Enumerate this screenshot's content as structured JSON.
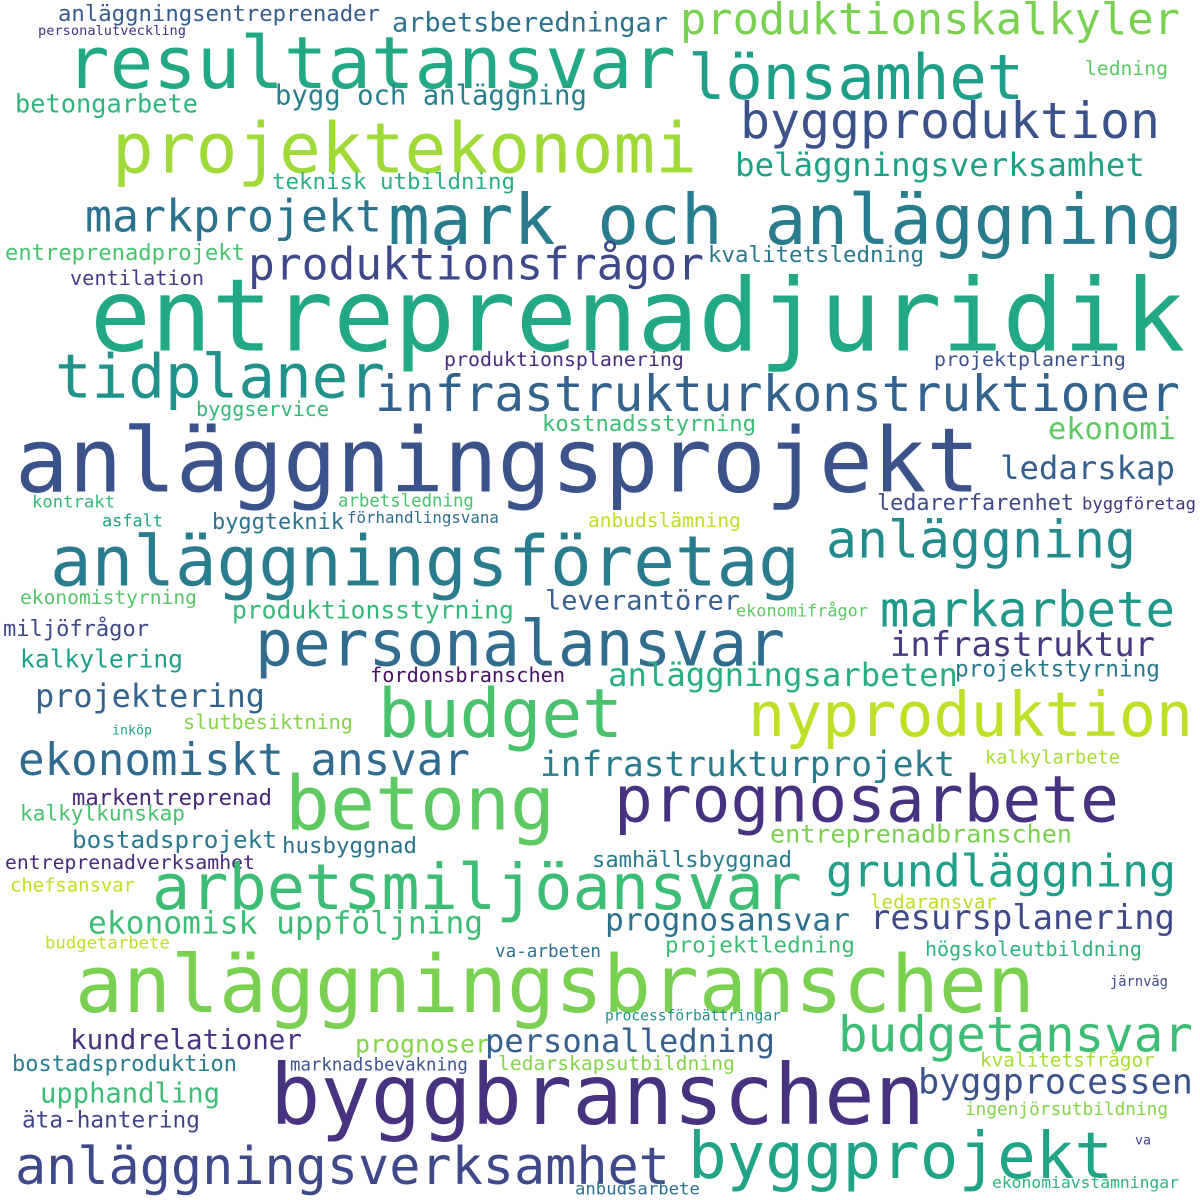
{
  "words": [
    {
      "text": "anläggningsentreprenader",
      "color": "#365c8d"
    },
    {
      "text": "personalutveckling",
      "color": "#46327e"
    },
    {
      "text": "arbetsberedningar",
      "color": "#2c728e"
    },
    {
      "text": "produktionskalkyler",
      "color": "#7ad151"
    },
    {
      "text": "resultatansvar",
      "color": "#22a884"
    },
    {
      "text": "lönsamhet",
      "color": "#1f9e89"
    },
    {
      "text": "ledning",
      "color": "#5ec962"
    },
    {
      "text": "betongarbete",
      "color": "#2fb47c"
    },
    {
      "text": "bygg och anläggning",
      "color": "#277f8e"
    },
    {
      "text": "byggproduktion",
      "color": "#3b528b"
    },
    {
      "text": "projektekonomi",
      "color": "#a0da39"
    },
    {
      "text": "beläggningsverksamhet",
      "color": "#1fa187"
    },
    {
      "text": "teknisk utbildning",
      "color": "#2ab07f"
    },
    {
      "text": "markprojekt",
      "color": "#2c728e"
    },
    {
      "text": "mark och anläggning",
      "color": "#287c8e"
    },
    {
      "text": "entreprenadprojekt",
      "color": "#4ac16d"
    },
    {
      "text": "produktionsfrågor",
      "color": "#3e4989"
    },
    {
      "text": "kvalitetsledning",
      "color": "#2a788e"
    },
    {
      "text": "ventilation",
      "color": "#433e85"
    },
    {
      "text": "entreprenadjuridik",
      "color": "#22a884"
    },
    {
      "text": "tidplaner",
      "color": "#21918c"
    },
    {
      "text": "produktionsplanering",
      "color": "#472d7b"
    },
    {
      "text": "projektplanering",
      "color": "#3b528b"
    },
    {
      "text": "infrastrukturkonstruktioner",
      "color": "#33638d"
    },
    {
      "text": "byggservice",
      "color": "#35b779"
    },
    {
      "text": "kostnadsstyrning",
      "color": "#3dbc74"
    },
    {
      "text": "ekonomi",
      "color": "#5ec962"
    },
    {
      "text": "anläggningsprojekt",
      "color": "#3b528b"
    },
    {
      "text": "ledarskap",
      "color": "#355f8d"
    },
    {
      "text": "kontrakt",
      "color": "#35b779"
    },
    {
      "text": "arbetsledning",
      "color": "#4ac16d"
    },
    {
      "text": "ledarerfarenhet",
      "color": "#3e4989"
    },
    {
      "text": "byggföretag",
      "color": "#46327e"
    },
    {
      "text": "asfalt",
      "color": "#20a386"
    },
    {
      "text": "byggteknik",
      "color": "#2c728e"
    },
    {
      "text": "förhandlingsvana",
      "color": "#2d708e"
    },
    {
      "text": "anbudslämning",
      "color": "#bddf26"
    },
    {
      "text": "anläggningsföretag",
      "color": "#287c8e"
    },
    {
      "text": "anläggning",
      "color": "#238a8d"
    },
    {
      "text": "ekonomistyrning",
      "color": "#54c568"
    },
    {
      "text": "leverantörer",
      "color": "#355f8d"
    },
    {
      "text": "ekonomifrågor",
      "color": "#5ec962"
    },
    {
      "text": "produktionsstyrning",
      "color": "#37b878"
    },
    {
      "text": "markarbete",
      "color": "#1f978b"
    },
    {
      "text": "miljöfrågor",
      "color": "#3e4989"
    },
    {
      "text": "personalansvar",
      "color": "#2f6c8e"
    },
    {
      "text": "infrastruktur",
      "color": "#443983"
    },
    {
      "text": "kalkylering",
      "color": "#1f9e89"
    },
    {
      "text": "fordonsbranschen",
      "color": "#471164"
    },
    {
      "text": "projektstyrning",
      "color": "#2a788e"
    },
    {
      "text": "anläggningsarbeten",
      "color": "#29af7f"
    },
    {
      "text": "projektering",
      "color": "#33638d"
    },
    {
      "text": "budget",
      "color": "#4ac16d"
    },
    {
      "text": "nyproduktion",
      "color": "#bddf26"
    },
    {
      "text": "inköp",
      "color": "#20a386"
    },
    {
      "text": "slutbesiktning",
      "color": "#84d44b"
    },
    {
      "text": "ekonomiskt ansvar",
      "color": "#306a8e"
    },
    {
      "text": "infrastrukturprojekt",
      "color": "#287c8e"
    },
    {
      "text": "kalkylarbete",
      "color": "#a8db34"
    },
    {
      "text": "betong",
      "color": "#5ec962"
    },
    {
      "text": "prognosarbete",
      "color": "#46327e"
    },
    {
      "text": "markentreprenad",
      "color": "#482878"
    },
    {
      "text": "kalkylkunskap",
      "color": "#4ac16d"
    },
    {
      "text": "bostadsprojekt",
      "color": "#2a788e"
    },
    {
      "text": "husbyggnad",
      "color": "#2c728e"
    },
    {
      "text": "entreprenadbranschen",
      "color": "#7ad151"
    },
    {
      "text": "samhällsbyggnad",
      "color": "#297b8e"
    },
    {
      "text": "entreprenadverksamhet",
      "color": "#472a7a"
    },
    {
      "text": "arbetsmiljöansvar",
      "color": "#3dbc74"
    },
    {
      "text": "grundläggning",
      "color": "#1f9e89"
    },
    {
      "text": "chefsansvar",
      "color": "#c2df23"
    },
    {
      "text": "ledaransvar",
      "color": "#bddf26"
    },
    {
      "text": "ekonomisk uppföljning",
      "color": "#3dbc74"
    },
    {
      "text": "prognosansvar",
      "color": "#2d708e"
    },
    {
      "text": "resursplanering",
      "color": "#3e4989"
    },
    {
      "text": "budgetarbete",
      "color": "#c2df23"
    },
    {
      "text": "va-arbeten",
      "color": "#2c728e"
    },
    {
      "text": "projektledning",
      "color": "#3dbc74"
    },
    {
      "text": "högskoleutbildning",
      "color": "#2fb47c"
    },
    {
      "text": "anläggningsbranschen",
      "color": "#7ad151"
    },
    {
      "text": "järnväg",
      "color": "#3e4989"
    },
    {
      "text": "processförbättringar",
      "color": "#21918c"
    },
    {
      "text": "kundrelationer",
      "color": "#46327e"
    },
    {
      "text": "prognoser",
      "color": "#84d44b"
    },
    {
      "text": "personalledning",
      "color": "#355f8d"
    },
    {
      "text": "budgetansvar",
      "color": "#3dbc74"
    },
    {
      "text": "bostadsproduktion",
      "color": "#287c8e"
    },
    {
      "text": "marknadsbevakning",
      "color": "#3b528b"
    },
    {
      "text": "ledarskapsutbildning",
      "color": "#84d44b"
    },
    {
      "text": "kvalitetsfrågor",
      "color": "#a8db34"
    },
    {
      "text": "upphandling",
      "color": "#3dbc74"
    },
    {
      "text": "byggbranschen",
      "color": "#46327e"
    },
    {
      "text": "byggprocessen",
      "color": "#3b528b"
    },
    {
      "text": "äta-hantering",
      "color": "#414487"
    },
    {
      "text": "ingenjörsutbildning",
      "color": "#84d44b"
    },
    {
      "text": "anläggningsverksamhet",
      "color": "#3e4989"
    },
    {
      "text": "byggprojekt",
      "color": "#20a386"
    },
    {
      "text": "va",
      "color": "#3e4989"
    },
    {
      "text": "anbudsarbete",
      "color": "#2d708e"
    },
    {
      "text": "ekonomiavstämningar",
      "color": "#2fb47c"
    }
  ]
}
